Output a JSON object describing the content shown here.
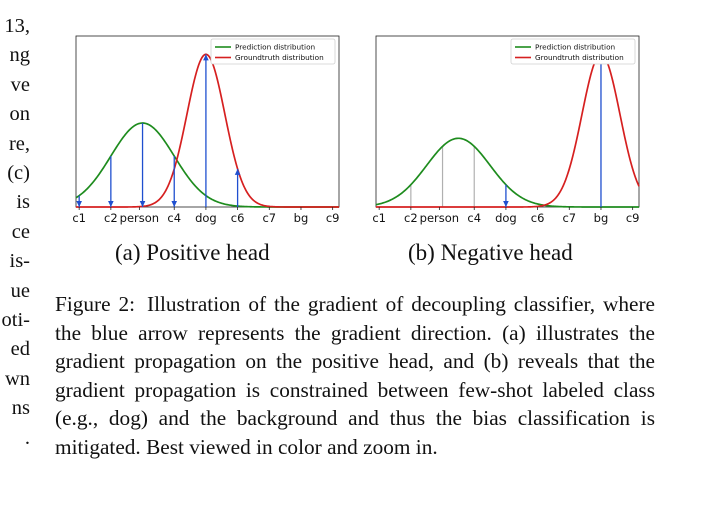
{
  "left_fragments": [
    "13,",
    "ng",
    "ve",
    "on",
    "re,",
    "(c)",
    "is",
    "ce",
    "is-",
    "ue",
    "oti-",
    "ed",
    "wn",
    "ns",
    "."
  ],
  "legend": {
    "prediction": "Prediction distribution",
    "groundtruth": "Groundtruth distribution"
  },
  "colors": {
    "prediction": "#1e8c1e",
    "groundtruth": "#d62020",
    "arrow": "#1f4fcf",
    "grid": "#b0b0b0"
  },
  "chart_data": [
    {
      "type": "line",
      "subcaption": "(a) Positive head",
      "tick_labels": [
        "c1",
        "c2",
        "person",
        "c4",
        "dog",
        "c6",
        "c7",
        "bg",
        "c9"
      ],
      "tick_positions": [
        0,
        1,
        1.9,
        3,
        4,
        5,
        6,
        7,
        8
      ],
      "series": [
        {
          "name": "Prediction distribution",
          "color": "green",
          "mean": 2.0,
          "sd": 1.0,
          "peak": 0.55
        },
        {
          "name": "Groundtruth distribution",
          "color": "red",
          "mean": 4.0,
          "sd": 0.6,
          "peak": 1.0
        }
      ],
      "arrows": [
        {
          "x": 0,
          "dir": "down"
        },
        {
          "x": 1,
          "dir": "down"
        },
        {
          "x": 2,
          "dir": "down"
        },
        {
          "x": 3,
          "dir": "down"
        },
        {
          "x": 4,
          "dir": "up"
        },
        {
          "x": 5,
          "dir": "up"
        }
      ],
      "xlim": [
        -0.1,
        8.2
      ],
      "ylim": [
        0,
        1.12
      ]
    },
    {
      "type": "line",
      "subcaption": "(b) Negative head",
      "tick_labels": [
        "c1",
        "c2",
        "person",
        "c4",
        "dog",
        "c6",
        "c7",
        "bg",
        "c9"
      ],
      "tick_positions": [
        0,
        1,
        1.9,
        3,
        4,
        5,
        6,
        7,
        8
      ],
      "series": [
        {
          "name": "Prediction distribution",
          "color": "green",
          "mean": 2.5,
          "sd": 1.0,
          "peak": 0.45
        },
        {
          "name": "Groundtruth distribution",
          "color": "red",
          "mean": 7.0,
          "sd": 0.6,
          "peak": 1.0
        }
      ],
      "grey_lines": [
        1,
        2,
        3
      ],
      "arrows": [
        {
          "x": 4,
          "dir": "down"
        },
        {
          "x": 7,
          "dir": "up"
        }
      ],
      "xlim": [
        -0.1,
        8.2
      ],
      "ylim": [
        0,
        1.12
      ]
    }
  ],
  "caption": {
    "label": "Figure 2:",
    "text": "Illustration of the gradient of decoupling classifier, where the blue arrow represents the gradient direction. (a) illustrates the gradient propagation on the positive head, and (b) reveals that the gradient propagation is constrained between few-shot labeled class (e.g., dog) and the background and thus the bias classification is mitigated. Best viewed in color and zoom in."
  }
}
